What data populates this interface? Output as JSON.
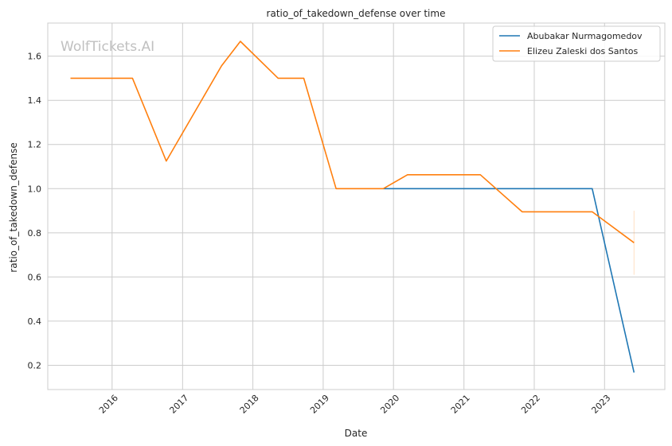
{
  "chart_data": {
    "type": "line",
    "title": "ratio_of_takedown_defense over time",
    "xlabel": "Date",
    "ylabel": "ratio_of_takedown_defense",
    "watermark": "WolfTickets.AI",
    "x_type": "date",
    "xlim": [
      "2015-02-01",
      "2023-11-10"
    ],
    "ylim": [
      0.09,
      1.75
    ],
    "x_ticks": [
      {
        "date": "2016-01-01",
        "label": "2016"
      },
      {
        "date": "2017-01-01",
        "label": "2017"
      },
      {
        "date": "2018-01-01",
        "label": "2018"
      },
      {
        "date": "2019-01-01",
        "label": "2019"
      },
      {
        "date": "2020-01-01",
        "label": "2020"
      },
      {
        "date": "2021-01-01",
        "label": "2021"
      },
      {
        "date": "2022-01-01",
        "label": "2022"
      },
      {
        "date": "2023-01-01",
        "label": "2023"
      }
    ],
    "y_ticks": [
      {
        "value": 0.2,
        "label": "0.2"
      },
      {
        "value": 0.4,
        "label": "0.4"
      },
      {
        "value": 0.6,
        "label": "0.6"
      },
      {
        "value": 0.8,
        "label": "0.8"
      },
      {
        "value": 1.0,
        "label": "1.0"
      },
      {
        "value": 1.2,
        "label": "1.2"
      },
      {
        "value": 1.4,
        "label": "1.4"
      },
      {
        "value": 1.6,
        "label": "1.6"
      }
    ],
    "grid": true,
    "legend_position": "top-right",
    "series": [
      {
        "name": "Abubakar Nurmagomedov",
        "color": "#1f77b4",
        "points": [
          {
            "x": "2019-11-09",
            "y": 1.0
          },
          {
            "x": "2022-10-29",
            "y": 1.0
          },
          {
            "x": "2023-06-03",
            "y": 0.167
          }
        ]
      },
      {
        "name": "Elizeu Zaleski dos Santos",
        "color": "#ff7f0e",
        "points": [
          {
            "x": "2015-05-30",
            "y": 1.5
          },
          {
            "x": "2016-04-16",
            "y": 1.5
          },
          {
            "x": "2016-10-08",
            "y": 1.125
          },
          {
            "x": "2017-07-22",
            "y": 1.556
          },
          {
            "x": "2017-10-28",
            "y": 1.667
          },
          {
            "x": "2018-05-12",
            "y": 1.5
          },
          {
            "x": "2018-09-22",
            "y": 1.5
          },
          {
            "x": "2019-03-09",
            "y": 1.0
          },
          {
            "x": "2019-11-09",
            "y": 1.0
          },
          {
            "x": "2020-03-14",
            "y": 1.063
          },
          {
            "x": "2021-03-27",
            "y": 1.063
          },
          {
            "x": "2021-10-30",
            "y": 0.895
          },
          {
            "x": "2022-10-29",
            "y": 0.895
          },
          {
            "x": "2023-06-03",
            "y": 0.755
          }
        ],
        "band": {
          "x": "2023-06-03",
          "low": 0.61,
          "high": 0.9
        }
      }
    ]
  }
}
